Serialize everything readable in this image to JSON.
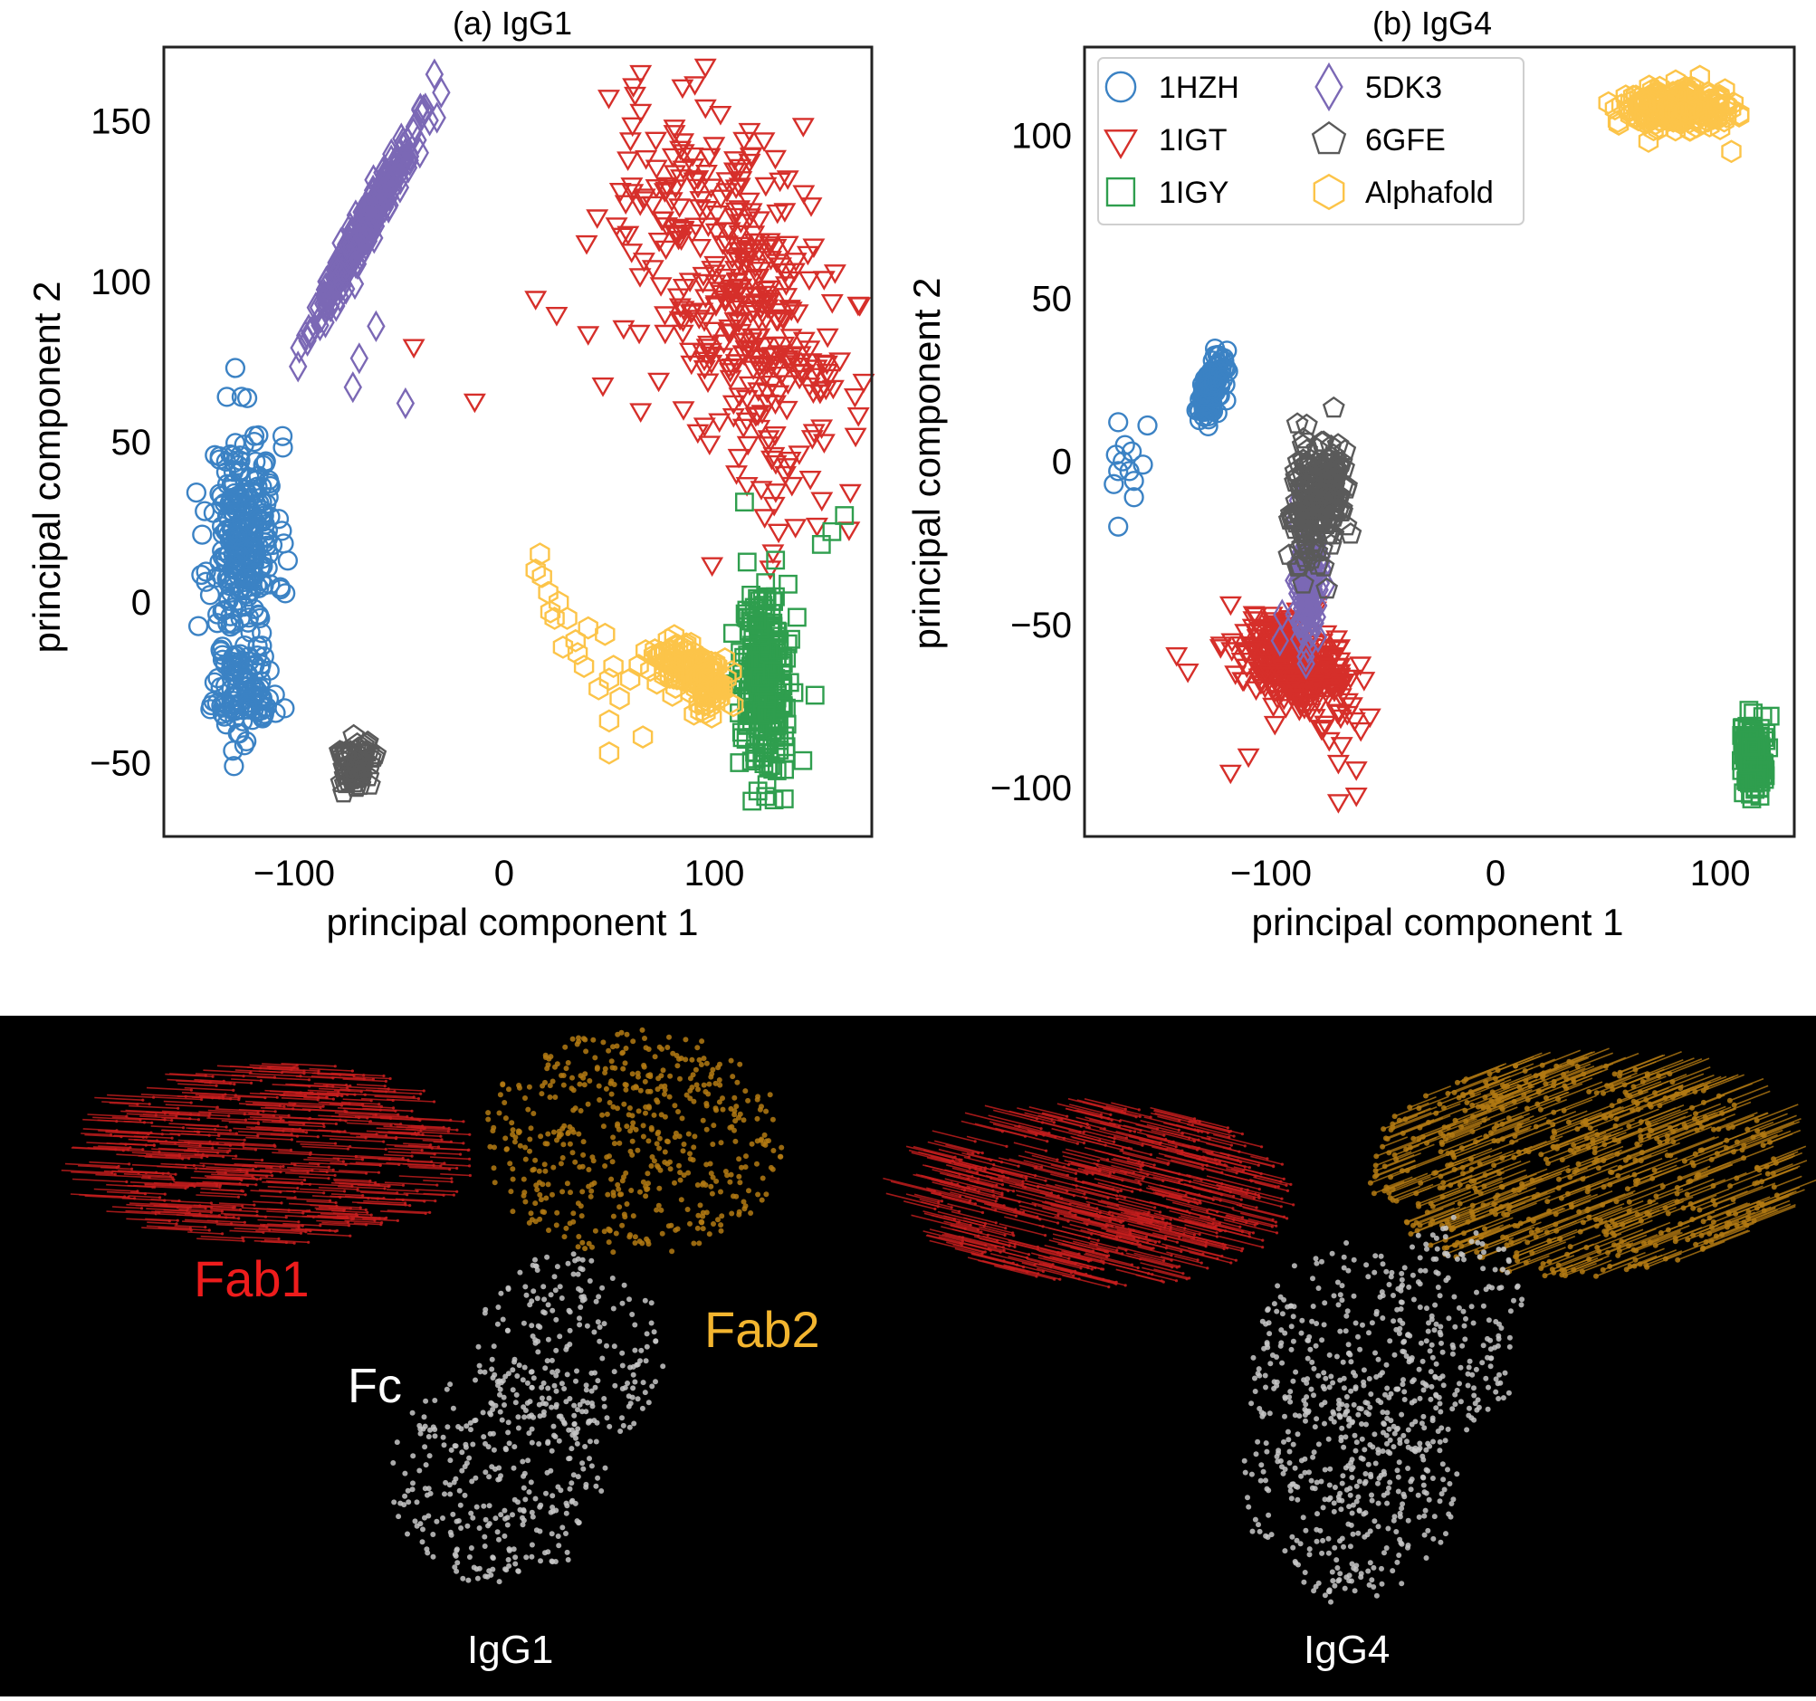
{
  "chart_data": [
    {
      "type": "scatter",
      "title": "(a) IgG1",
      "xlabel": "principal component 1",
      "ylabel": "principal component 2",
      "xlim": [
        -162,
        175
      ],
      "ylim": [
        -73,
        173
      ],
      "xticks": [
        -100,
        0,
        100
      ],
      "xtick_labels": [
        "−100",
        "0",
        "100"
      ],
      "yticks": [
        -50,
        0,
        50,
        100,
        150
      ],
      "ytick_labels": [
        "−50",
        "0",
        "50",
        "100",
        "150"
      ],
      "grid": false,
      "series": [
        {
          "name": "1HZH",
          "marker": "circle",
          "color": "#3b82c4",
          "clusters": [
            {
              "cx": -124,
              "cy": 20,
              "sx": 8,
              "sy": 16,
              "n": 240
            },
            {
              "cx": -124,
              "cy": -27,
              "sx": 7,
              "sy": 8,
              "n": 110
            }
          ],
          "points": [
            [
              -128,
              73
            ],
            [
              -132,
              64
            ],
            [
              -125,
              64
            ],
            [
              -117,
              52
            ],
            [
              -103,
              13
            ],
            [
              -112,
              38
            ]
          ]
        },
        {
          "name": "1IGT",
          "marker": "triangle-down",
          "color": "#d62f2a",
          "clusters": [
            {
              "cx": 110,
              "cy": 100,
              "sx": 25,
              "sy": 30,
              "rho": -0.5,
              "n": 380
            }
          ],
          "points": [
            [
              -14,
              63
            ],
            [
              -43,
              80
            ],
            [
              15,
              95
            ],
            [
              25,
              90
            ],
            [
              40,
              84
            ],
            [
              47,
              68
            ],
            [
              65,
              60
            ],
            [
              99,
              12
            ],
            [
              124,
              27
            ],
            [
              137,
              37
            ]
          ]
        },
        {
          "name": "1IGY",
          "marker": "square",
          "color": "#2f9e4e",
          "clusters": [
            {
              "cx": 124,
              "cy": -25,
              "sx": 6,
              "sy": 15,
              "n": 260
            }
          ],
          "points": [
            [
              151,
              18
            ],
            [
              156,
              22
            ],
            [
              162,
              27
            ],
            [
              148,
              -29
            ],
            [
              112,
              -50
            ],
            [
              118,
              -62
            ]
          ]
        },
        {
          "name": "5DK3",
          "marker": "diamond",
          "color": "#7b68b5",
          "clusters": [
            {
              "cx": -66,
              "cy": 117,
              "sx": 12,
              "sy": 15,
              "rho": 0.97,
              "n": 280
            }
          ],
          "points": [
            [
              -72,
              67
            ],
            [
              -69,
              76
            ],
            [
              -47,
              62
            ],
            [
              -61,
              86
            ],
            [
              -32,
              151
            ]
          ]
        },
        {
          "name": "6GFE",
          "marker": "pentagon",
          "color": "#5a5a5a",
          "clusters": [
            {
              "cx": -71,
              "cy": -51,
              "sx": 4,
              "sy": 4,
              "n": 70
            }
          ],
          "points": []
        },
        {
          "name": "Alphafold",
          "marker": "hexagon",
          "color": "#fcc449",
          "clusters": [
            {
              "cx": 87,
              "cy": -20,
              "sx": 8,
              "sy": 3.5,
              "n": 90
            },
            {
              "cx": 98,
              "cy": -27,
              "sx": 4,
              "sy": 4,
              "n": 60
            }
          ],
          "points": [
            [
              17,
              15
            ],
            [
              15,
              10
            ],
            [
              21,
              3
            ],
            [
              26,
              0
            ],
            [
              30,
              -5
            ],
            [
              34,
              -12
            ],
            [
              28,
              -14
            ],
            [
              40,
              -8
            ],
            [
              48,
              -10
            ],
            [
              50,
              -24
            ],
            [
              52,
              -20
            ],
            [
              45,
              -27
            ],
            [
              55,
              -30
            ],
            [
              50,
              -37
            ],
            [
              66,
              -42
            ],
            [
              50,
              -47
            ],
            [
              35,
              -16
            ],
            [
              24,
              -5
            ],
            [
              38,
              -20
            ],
            [
              60,
              -24
            ],
            [
              18,
              8
            ],
            [
              22,
              -3
            ]
          ]
        }
      ]
    },
    {
      "type": "scatter",
      "title": "(b) IgG4",
      "xlabel": "principal component 1",
      "ylabel": "principal component 2",
      "xlim": [
        -183,
        133
      ],
      "ylim": [
        -115,
        127
      ],
      "xticks": [
        -100,
        0,
        100
      ],
      "xtick_labels": [
        "−100",
        "0",
        "100"
      ],
      "yticks": [
        -100,
        -50,
        0,
        50,
        100
      ],
      "ytick_labels": [
        "−100",
        "−50",
        "0",
        "50",
        "100"
      ],
      "grid": false,
      "legend": {
        "position": "top-left",
        "columns": 2
      },
      "series": [
        {
          "name": "1HZH",
          "marker": "circle",
          "color": "#3b82c4",
          "clusters": [
            {
              "cx": -127,
              "cy": 22,
              "sx": 3,
              "sy": 5,
              "rho": 0.6,
              "n": 120
            }
          ],
          "points": [
            [
              -170,
              -7
            ],
            [
              -168,
              -3
            ],
            [
              -166,
              0
            ],
            [
              -163,
              -3
            ],
            [
              -161,
              -6
            ],
            [
              -169,
              2
            ],
            [
              -162,
              3
            ],
            [
              -165,
              5
            ],
            [
              -168,
              -20
            ],
            [
              -157,
              -1
            ],
            [
              -161,
              -11
            ],
            [
              -168,
              12
            ],
            [
              -155,
              11
            ]
          ]
        },
        {
          "name": "1IGT",
          "marker": "triangle-down",
          "color": "#d62f2a",
          "clusters": [
            {
              "cx": -90,
              "cy": -62,
              "sx": 12,
              "sy": 8,
              "rho": -0.5,
              "n": 320
            }
          ],
          "points": [
            [
              -142,
              -59
            ],
            [
              -137,
              -64
            ],
            [
              -118,
              -95
            ],
            [
              -70,
              -92
            ],
            [
              -62,
              -94
            ],
            [
              -70,
              -104
            ],
            [
              -62,
              -102
            ],
            [
              -60,
              -82
            ],
            [
              -66,
              -77
            ],
            [
              -110,
              -90
            ],
            [
              -80,
              -45
            ]
          ]
        },
        {
          "name": "1IGY",
          "marker": "square",
          "color": "#2f9e4e",
          "clusters": [
            {
              "cx": 115,
              "cy": -91,
              "sx": 3,
              "sy": 6,
              "n": 160
            }
          ],
          "points": []
        },
        {
          "name": "5DK3",
          "marker": "diamond",
          "color": "#7b68b5",
          "clusters": [
            {
              "cx": -83,
              "cy": -38,
              "sx": 3,
              "sy": 8,
              "n": 120
            }
          ],
          "points": [
            [
              -88,
              -12
            ],
            [
              -95,
              -47
            ],
            [
              -96,
              -55
            ],
            [
              -77,
              -33
            ]
          ]
        },
        {
          "name": "6GFE",
          "marker": "pentagon",
          "color": "#5a5a5a",
          "clusters": [
            {
              "cx": -83,
              "cy": -14,
              "sx": 4,
              "sy": 9,
              "n": 130
            },
            {
              "cx": -73,
              "cy": -8,
              "sx": 3,
              "sy": 6,
              "n": 80
            }
          ],
          "points": []
        },
        {
          "name": "Alphafold",
          "marker": "hexagon",
          "color": "#fcc449",
          "clusters": [
            {
              "cx": 80,
              "cy": 108,
              "sx": 12,
              "sy": 3,
              "n": 220
            }
          ],
          "points": [
            [
              91,
              118
            ],
            [
              105,
              95
            ],
            [
              100,
              102
            ]
          ]
        }
      ]
    }
  ],
  "structures": {
    "labels": {
      "fab1": "Fab1",
      "fab2": "Fab2",
      "fc": "Fc"
    },
    "left_caption": "IgG1",
    "right_caption": "IgG4",
    "colors": {
      "fab1": "#c81e1e",
      "fab2": "#b37a13",
      "fc": "#c8c8c8",
      "fab1_label": "#ee1c1c",
      "fab2_label": "#f3b52f",
      "fc_label": "#ffffff"
    }
  }
}
